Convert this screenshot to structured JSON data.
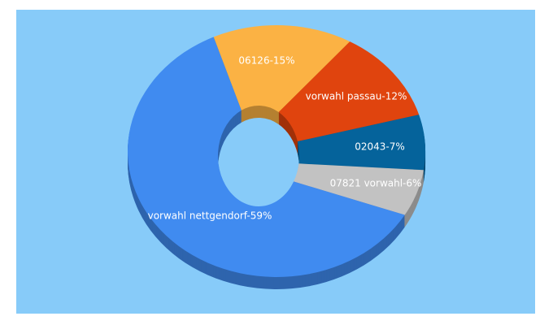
{
  "chart_data": {
    "type": "pie",
    "donut": true,
    "values": [
      15,
      12,
      7,
      6,
      59
    ],
    "value_labels": [
      "06126-15%",
      "vorwahl passau-12%",
      "02043-7%",
      "07821 vorwahl-6%",
      "vorwahl nettgendorf-59%"
    ],
    "colors": [
      "#fbb244",
      "#e0440e",
      "#05639b",
      "#c2c2c2",
      "#408bf0"
    ]
  }
}
